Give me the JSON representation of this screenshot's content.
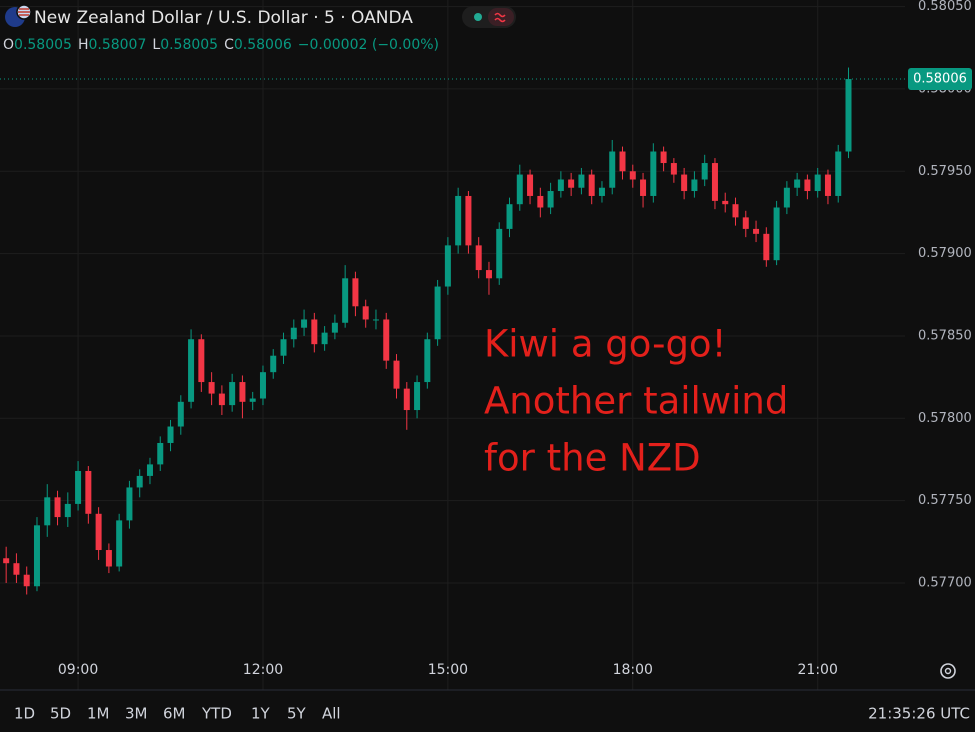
{
  "chart_data": {
    "type": "candlestick",
    "title": "New Zealand Dollar / U.S. Dollar · 5 · OANDA",
    "ohlc_legend": [
      {
        "key": "O",
        "value": 0.58005
      },
      {
        "key": "H",
        "value": 0.58007
      },
      {
        "key": "L",
        "value": 0.58005
      },
      {
        "key": "C",
        "value": 0.58006
      }
    ],
    "change": "−0.00002 (−0.00%)",
    "annotation": [
      "Kiwi a go-go!",
      "Another tailwind",
      "for the NZD"
    ],
    "annotation_color": "#e3201b",
    "up_color": "#089981",
    "down_color": "#f23645",
    "grid": true,
    "xlim": [
      464,
      1345
    ],
    "xticks": [
      {
        "value": 540,
        "label": "09:00"
      },
      {
        "value": 720,
        "label": "12:00"
      },
      {
        "value": 900,
        "label": "15:00"
      },
      {
        "value": 1080,
        "label": "18:00"
      },
      {
        "value": 1260,
        "label": "21:00"
      }
    ],
    "ylim": [
      0.57635,
      0.58054
    ],
    "yticks": [
      {
        "value": 0.5805,
        "label": "0.58050"
      },
      {
        "value": 0.58,
        "label": "0.58000"
      },
      {
        "value": 0.5795,
        "label": "0.57950"
      },
      {
        "value": 0.579,
        "label": "0.57900"
      },
      {
        "value": 0.5785,
        "label": "0.57850"
      },
      {
        "value": 0.578,
        "label": "0.57800"
      },
      {
        "value": 0.5775,
        "label": "0.57750"
      },
      {
        "value": 0.577,
        "label": "0.57700"
      }
    ],
    "last_price": {
      "value": 0.58006,
      "label": "0.58006"
    },
    "candle_fields": [
      "x",
      "open",
      "high",
      "low",
      "close"
    ],
    "candles": [
      [
        470,
        0.57715,
        0.57722,
        0.577,
        0.57712
      ],
      [
        480,
        0.57712,
        0.57718,
        0.577,
        0.57705
      ],
      [
        490,
        0.57705,
        0.5771,
        0.57693,
        0.57698
      ],
      [
        500,
        0.57698,
        0.5774,
        0.57695,
        0.57735
      ],
      [
        510,
        0.57735,
        0.5776,
        0.57728,
        0.57752
      ],
      [
        520,
        0.57752,
        0.57756,
        0.57735,
        0.5774
      ],
      [
        530,
        0.5774,
        0.57755,
        0.57734,
        0.57748
      ],
      [
        540,
        0.57748,
        0.57774,
        0.57744,
        0.57768
      ],
      [
        550,
        0.57768,
        0.57771,
        0.57736,
        0.57742
      ],
      [
        560,
        0.57742,
        0.57746,
        0.57714,
        0.5772
      ],
      [
        570,
        0.5772,
        0.57724,
        0.57706,
        0.5771
      ],
      [
        580,
        0.5771,
        0.57742,
        0.57707,
        0.57738
      ],
      [
        590,
        0.57738,
        0.57762,
        0.57733,
        0.57758
      ],
      [
        600,
        0.57758,
        0.57769,
        0.57752,
        0.57765
      ],
      [
        610,
        0.57765,
        0.57776,
        0.5776,
        0.57772
      ],
      [
        620,
        0.57772,
        0.57789,
        0.57768,
        0.57785
      ],
      [
        630,
        0.57785,
        0.57799,
        0.5778,
        0.57795
      ],
      [
        640,
        0.57795,
        0.57814,
        0.5779,
        0.5781
      ],
      [
        650,
        0.5781,
        0.57854,
        0.57806,
        0.57848
      ],
      [
        660,
        0.57848,
        0.57851,
        0.57816,
        0.57822
      ],
      [
        670,
        0.57822,
        0.57828,
        0.57808,
        0.57815
      ],
      [
        680,
        0.57815,
        0.5782,
        0.57802,
        0.57808
      ],
      [
        690,
        0.57808,
        0.57827,
        0.57804,
        0.57822
      ],
      [
        700,
        0.57822,
        0.57826,
        0.578,
        0.5781
      ],
      [
        710,
        0.5781,
        0.57816,
        0.57805,
        0.57812
      ],
      [
        720,
        0.57812,
        0.57832,
        0.57808,
        0.57828
      ],
      [
        730,
        0.57828,
        0.57842,
        0.57824,
        0.57838
      ],
      [
        740,
        0.57838,
        0.57852,
        0.57833,
        0.57848
      ],
      [
        750,
        0.57848,
        0.5786,
        0.57843,
        0.57855
      ],
      [
        760,
        0.57855,
        0.57866,
        0.5785,
        0.5786
      ],
      [
        770,
        0.5786,
        0.57864,
        0.5784,
        0.57845
      ],
      [
        780,
        0.57845,
        0.57856,
        0.57841,
        0.57852
      ],
      [
        790,
        0.57852,
        0.57863,
        0.57848,
        0.57858
      ],
      [
        800,
        0.57858,
        0.57893,
        0.57855,
        0.57885
      ],
      [
        810,
        0.57885,
        0.57889,
        0.57862,
        0.57868
      ],
      [
        820,
        0.57868,
        0.57872,
        0.57855,
        0.5786
      ],
      [
        830,
        0.5786,
        0.57866,
        0.57854,
        0.5786
      ],
      [
        840,
        0.5786,
        0.57864,
        0.5783,
        0.57835
      ],
      [
        850,
        0.57835,
        0.57839,
        0.57812,
        0.57818
      ],
      [
        860,
        0.57818,
        0.57822,
        0.57793,
        0.57805
      ],
      [
        870,
        0.57805,
        0.57826,
        0.578,
        0.57822
      ],
      [
        880,
        0.57822,
        0.57852,
        0.57818,
        0.57848
      ],
      [
        890,
        0.57848,
        0.57884,
        0.57844,
        0.5788
      ],
      [
        900,
        0.5788,
        0.5791,
        0.57875,
        0.57905
      ],
      [
        910,
        0.57905,
        0.5794,
        0.579,
        0.57935
      ],
      [
        920,
        0.57935,
        0.57938,
        0.579,
        0.57905
      ],
      [
        930,
        0.57905,
        0.5791,
        0.57885,
        0.5789
      ],
      [
        940,
        0.5789,
        0.57895,
        0.57875,
        0.57885
      ],
      [
        950,
        0.57885,
        0.57919,
        0.57881,
        0.57915
      ],
      [
        960,
        0.57915,
        0.57934,
        0.5791,
        0.5793
      ],
      [
        970,
        0.5793,
        0.57954,
        0.57926,
        0.57948
      ],
      [
        980,
        0.57948,
        0.57951,
        0.5793,
        0.57935
      ],
      [
        990,
        0.57935,
        0.5794,
        0.57922,
        0.57928
      ],
      [
        1000,
        0.57928,
        0.57943,
        0.57924,
        0.57938
      ],
      [
        1010,
        0.57938,
        0.5795,
        0.57934,
        0.57945
      ],
      [
        1020,
        0.57945,
        0.57949,
        0.57935,
        0.5794
      ],
      [
        1030,
        0.5794,
        0.57952,
        0.57936,
        0.57948
      ],
      [
        1040,
        0.57948,
        0.57951,
        0.5793,
        0.57935
      ],
      [
        1050,
        0.57935,
        0.57944,
        0.57931,
        0.5794
      ],
      [
        1060,
        0.5794,
        0.57969,
        0.57936,
        0.57962
      ],
      [
        1070,
        0.57962,
        0.57965,
        0.57945,
        0.5795
      ],
      [
        1080,
        0.5795,
        0.57954,
        0.5794,
        0.57945
      ],
      [
        1090,
        0.57945,
        0.57949,
        0.57928,
        0.57935
      ],
      [
        1100,
        0.57935,
        0.57967,
        0.57931,
        0.57962
      ],
      [
        1110,
        0.57962,
        0.57965,
        0.5795,
        0.57955
      ],
      [
        1120,
        0.57955,
        0.57958,
        0.57943,
        0.57948
      ],
      [
        1130,
        0.57948,
        0.57952,
        0.57933,
        0.57938
      ],
      [
        1140,
        0.57938,
        0.5795,
        0.57934,
        0.57945
      ],
      [
        1150,
        0.57945,
        0.5796,
        0.57941,
        0.57955
      ],
      [
        1160,
        0.57955,
        0.57958,
        0.57927,
        0.57932
      ],
      [
        1170,
        0.57932,
        0.57937,
        0.57925,
        0.5793
      ],
      [
        1180,
        0.5793,
        0.57934,
        0.57917,
        0.57922
      ],
      [
        1190,
        0.57922,
        0.57926,
        0.5791,
        0.57915
      ],
      [
        1200,
        0.57915,
        0.5792,
        0.57907,
        0.57912
      ],
      [
        1210,
        0.57912,
        0.57916,
        0.57892,
        0.57896
      ],
      [
        1220,
        0.57896,
        0.57932,
        0.57893,
        0.57928
      ],
      [
        1230,
        0.57928,
        0.57944,
        0.57924,
        0.5794
      ],
      [
        1240,
        0.5794,
        0.57949,
        0.57935,
        0.57945
      ],
      [
        1250,
        0.57945,
        0.57948,
        0.57933,
        0.57938
      ],
      [
        1260,
        0.57938,
        0.57952,
        0.57934,
        0.57948
      ],
      [
        1270,
        0.57948,
        0.57951,
        0.5793,
        0.57935
      ],
      [
        1280,
        0.57935,
        0.57966,
        0.57931,
        0.57962
      ],
      [
        1290,
        0.57962,
        0.58013,
        0.57958,
        0.58006
      ]
    ],
    "timeframes": [
      "1D",
      "5D",
      "1M",
      "3M",
      "6M",
      "YTD",
      "1Y",
      "5Y",
      "All"
    ],
    "clock": "21:35:26 UTC"
  }
}
